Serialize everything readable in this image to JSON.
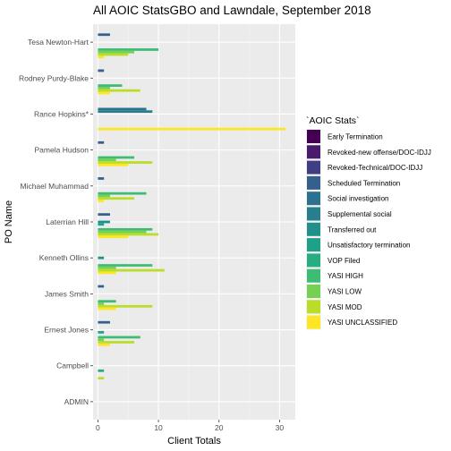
{
  "chart_data": {
    "type": "bar",
    "orientation": "horizontal",
    "title": "All AOIC StatsGBO and Lawndale, September 2018",
    "xlabel": "Client Totals",
    "ylabel": "PO Name",
    "xlim": [
      -0.8,
      32.6
    ],
    "xticks": [
      0,
      10,
      20,
      30
    ],
    "grid": true,
    "legend_title": "`AOIC Stats`",
    "legend_position": "right",
    "categories": [
      "Tesa Newton-Hart",
      "Rodney Purdy-Blake",
      "Rance Hopkins*",
      "Pamela Hudson",
      "Michael Muhammad",
      "Laterrian Hill",
      "Kenneth Ollins",
      "James Smith",
      "Ernest Jones",
      "Campbell",
      "ADMIN"
    ],
    "series": [
      {
        "name": "Early Termination",
        "color": "#440154",
        "values": [
          0,
          0,
          0,
          0,
          0,
          0,
          0,
          0,
          0,
          0,
          0
        ]
      },
      {
        "name": "Revoked-new offense/DOC-IDJJ",
        "color": "#481B6D",
        "values": [
          0,
          0,
          0,
          0,
          0,
          0,
          0,
          0,
          0,
          0,
          0
        ]
      },
      {
        "name": "Revoked-Technical/DOC-IDJJ",
        "color": "#3F3E85",
        "values": [
          0,
          0,
          0,
          0,
          0,
          0,
          0,
          0,
          0,
          0,
          0
        ]
      },
      {
        "name": "Scheduled Termination",
        "color": "#355F8D",
        "values": [
          2,
          1,
          0,
          1,
          1,
          2,
          0,
          1,
          2,
          0,
          0
        ]
      },
      {
        "name": "Social investigation",
        "color": "#2C728E",
        "values": [
          0,
          0,
          8,
          0,
          0,
          0,
          0,
          0,
          0,
          0,
          0
        ]
      },
      {
        "name": "Supplemental social",
        "color": "#277F8E",
        "values": [
          0,
          0,
          9,
          0,
          0,
          0,
          0,
          0,
          0,
          0,
          0
        ]
      },
      {
        "name": "Transferred out",
        "color": "#21908D",
        "values": [
          0,
          0,
          0,
          0,
          0,
          2,
          1,
          0,
          0,
          0,
          0
        ]
      },
      {
        "name": "Unsatisfactory termination",
        "color": "#1FA088",
        "values": [
          0,
          0,
          0,
          0,
          0,
          1,
          0,
          0,
          1,
          0,
          0
        ]
      },
      {
        "name": "VOP Filed",
        "color": "#27AD81",
        "values": [
          0,
          0,
          0,
          0,
          0,
          0,
          0,
          0,
          0,
          1,
          0
        ]
      },
      {
        "name": "YASI HIGH",
        "color": "#3DBC74",
        "values": [
          10,
          4,
          0,
          6,
          8,
          9,
          9,
          3,
          7,
          0,
          0
        ]
      },
      {
        "name": "YASI LOW",
        "color": "#75D054",
        "values": [
          6,
          2,
          0,
          3,
          2,
          8,
          3,
          1,
          1,
          0,
          0
        ]
      },
      {
        "name": "YASI MOD",
        "color": "#BADE28",
        "values": [
          5,
          7,
          0,
          9,
          6,
          10,
          11,
          9,
          6,
          1,
          0
        ]
      },
      {
        "name": "YASI UNCLASSIFIED",
        "color": "#FDE725",
        "values": [
          1,
          2,
          31,
          5,
          1,
          5,
          3,
          3,
          2,
          0,
          0
        ]
      }
    ]
  }
}
